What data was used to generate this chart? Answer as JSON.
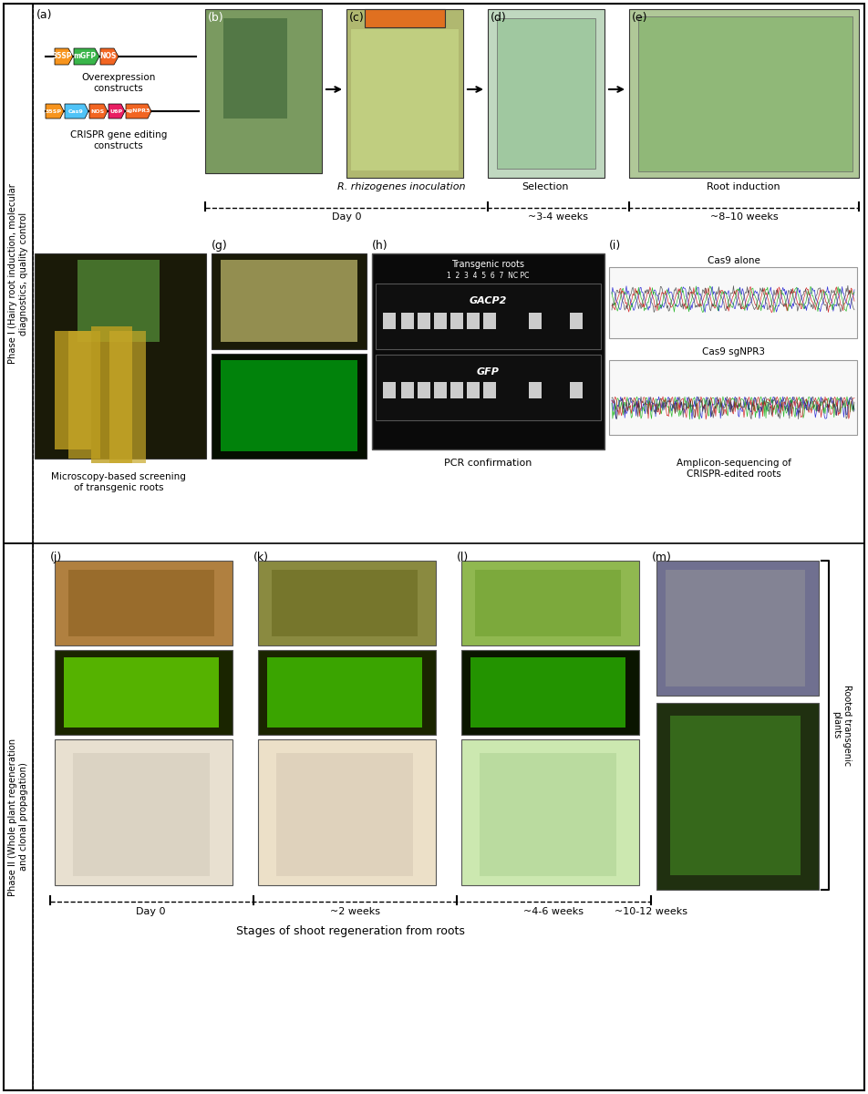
{
  "figure_width": 9.52,
  "figure_height": 12.0,
  "bg_color": "#ffffff",
  "phase1_label": "Phase I (Hairy root induction, molecular\ndiagnostics, quality control",
  "phase2_label": "Phase II (Whole plant regeneration\nand clonal propagation)",
  "phase1_timeline_labels": [
    "Day 0",
    "~3-4 weeks",
    "~8–10 weeks"
  ],
  "phase1_stage_labels": [
    "R. rhizogenes inoculation",
    "Selection",
    "Root induction"
  ],
  "phase2_timeline_labels": [
    "Day 0",
    "~2 weeks",
    "~4-6 weeks",
    "~10-12 weeks"
  ],
  "phase2_stage_label": "Stages of shoot regeneration from roots",
  "constructs_text1": "Overexpression\nconstructs",
  "constructs_text2": "CRISPR gene editing\nconstructs",
  "microscopy_label": "Microscopy-based screening\nof transgenic roots",
  "pcr_label": "PCR confirmation",
  "amplicon_label": "Amplicon-sequencing of\nCRISPR-edited roots",
  "rooted_label": "Rooted transgenic\nplants",
  "transgenic_roots_label": "Transgenic roots",
  "pcr_numbers": "1  2  3  4  5  6  7  NC PC",
  "pcr_gene1": "GACP2",
  "pcr_gene2": "GFP",
  "cas9_alone_label": "Cas9 alone",
  "cas9_sgnpr3_label": "Cas9 sgNPR3",
  "gene_colors": {
    "35SP": "#f7941d",
    "mGFP": "#39b54a",
    "NOS": "#f26522",
    "Cas9": "#4fc3f7",
    "U6P": "#e91e63",
    "sgNPR3": "#f26522"
  }
}
